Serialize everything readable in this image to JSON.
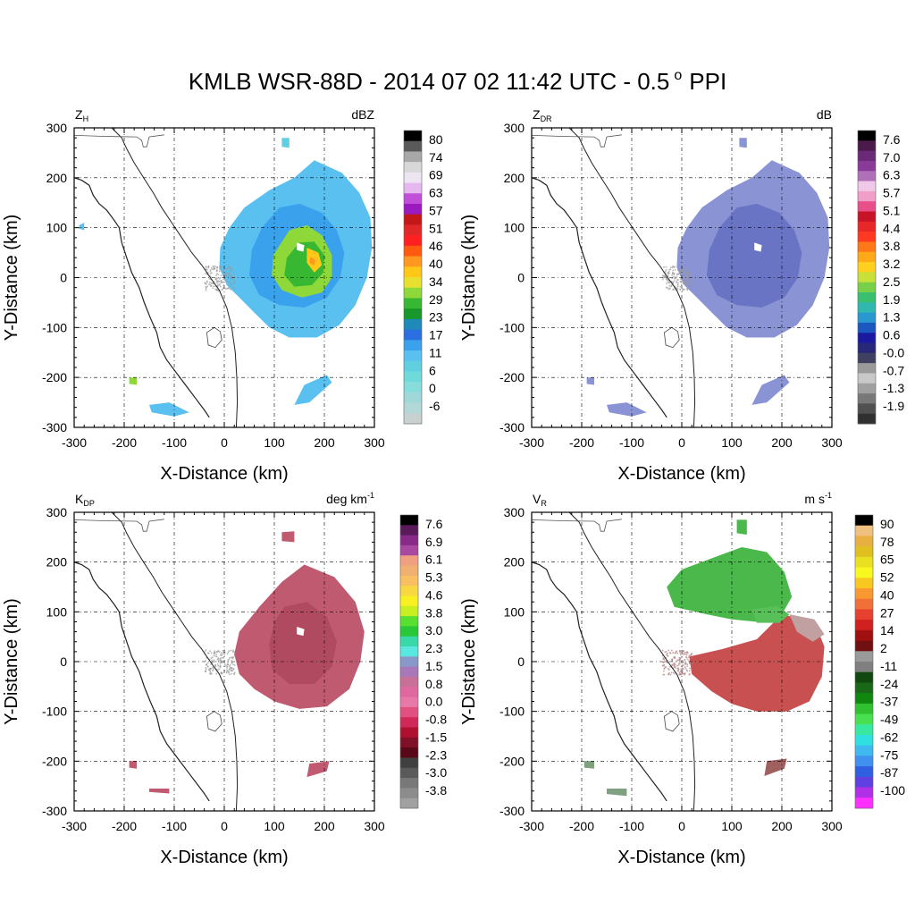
{
  "page": {
    "title_main": "KMLB WSR-88D - 2014 07 02 11:42 UTC - 0.5",
    "title_deg": "o",
    "title_tail": "PPI"
  },
  "axes": {
    "xlabel": "X-Distance (km)",
    "ylabel": "Y-Distance (km)",
    "xlim": [
      -300,
      300
    ],
    "ylim": [
      -300,
      300
    ],
    "ticks": [
      -300,
      -200,
      -100,
      0,
      100,
      200,
      300
    ],
    "grid": "dashed"
  },
  "chart_data": [
    {
      "type": "heatmap",
      "variable": "Z",
      "variable_sub": "H",
      "units": "dBZ",
      "colorbar_labels": [
        "80",
        "74",
        "69",
        "63",
        "57",
        "51",
        "46",
        "40",
        "34",
        "29",
        "23",
        "17",
        "11",
        "6",
        "0",
        "-6"
      ],
      "colorbar_colors": [
        "#000000",
        "#5a5a5a",
        "#a8a8a8",
        "#d8d8d8",
        "#ede6f2",
        "#e6b8f0",
        "#c04ed8",
        "#9a1ac0",
        "#c41818",
        "#e02828",
        "#ff2020",
        "#ff5a10",
        "#ff9820",
        "#ffc818",
        "#e8e030",
        "#8ed83a",
        "#38b832",
        "#18982a",
        "#1e8ab8",
        "#2a6ee0",
        "#3aa2ec",
        "#5ac0f0",
        "#60d0e0",
        "#70dada",
        "#88dcdc",
        "#a0d8d8",
        "#b4d8d8",
        "#c8d0d0"
      ]
    },
    {
      "type": "heatmap",
      "variable": "Z",
      "variable_sub": "DR",
      "units": "dB",
      "colorbar_labels": [
        "7.6",
        "7.0",
        "6.3",
        "5.7",
        "5.1",
        "4.4",
        "3.8",
        "3.2",
        "2.5",
        "1.9",
        "1.3",
        "0.6",
        "-0.0",
        "-0.7",
        "-1.3",
        "-1.9"
      ],
      "colorbar_colors": [
        "#000000",
        "#4a1a4a",
        "#6a2a78",
        "#8a3a98",
        "#b070b8",
        "#f0c8e8",
        "#f0a0c8",
        "#e8508a",
        "#c81428",
        "#e82828",
        "#ff3a20",
        "#ff7818",
        "#ffa818",
        "#ffd020",
        "#c8e038",
        "#78d048",
        "#38c070",
        "#30b8b0",
        "#2a98d0",
        "#1a58c0",
        "#1a1aa0",
        "#282878",
        "#404060",
        "#9a9a9a",
        "#c8c8c8",
        "#a0a0a0",
        "#787878",
        "#505050",
        "#303030"
      ]
    },
    {
      "type": "heatmap",
      "variable": "K",
      "variable_sub": "DP",
      "units": "deg km",
      "units_sup": "-1",
      "colorbar_labels": [
        "7.6",
        "6.9",
        "6.1",
        "5.3",
        "4.6",
        "3.8",
        "3.0",
        "2.3",
        "1.5",
        "0.8",
        "0.0",
        "-0.8",
        "-1.5",
        "-2.3",
        "-3.0",
        "-3.8"
      ],
      "colorbar_colors": [
        "#000000",
        "#5a1a5a",
        "#882a88",
        "#a848a0",
        "#f0a080",
        "#f0b070",
        "#f8c060",
        "#f8d840",
        "#f8f020",
        "#c8f020",
        "#58e030",
        "#28c838",
        "#38d8a8",
        "#58e8e0",
        "#8898c8",
        "#a878b8",
        "#c87098",
        "#e068a0",
        "#e878a8",
        "#e05080",
        "#d02858",
        "#b01030",
        "#801028",
        "#580818",
        "#404040",
        "#5a5a5a",
        "#787878",
        "#8c8c8c",
        "#a0a0a0"
      ]
    },
    {
      "type": "heatmap",
      "variable": "V",
      "variable_sub": "R",
      "units": "m s",
      "units_sup": "-1",
      "colorbar_labels": [
        "90",
        "78",
        "65",
        "52",
        "40",
        "27",
        "14",
        "2",
        "-11",
        "-24",
        "-37",
        "-49",
        "-62",
        "-75",
        "-87",
        "-100"
      ],
      "colorbar_colors": [
        "#000000",
        "#f0c080",
        "#e8b040",
        "#e0c020",
        "#e8e020",
        "#f8f820",
        "#f8c820",
        "#f89830",
        "#f07038",
        "#e84030",
        "#d02020",
        "#a01010",
        "#701010",
        "#9a9a9a",
        "#808080",
        "#104810",
        "#186818",
        "#108810",
        "#30c030",
        "#48e050",
        "#38e8a0",
        "#30e0e0",
        "#40b8f0",
        "#4090f0",
        "#3060e0",
        "#6040e0",
        "#b030e8",
        "#ff30ff"
      ]
    }
  ]
}
